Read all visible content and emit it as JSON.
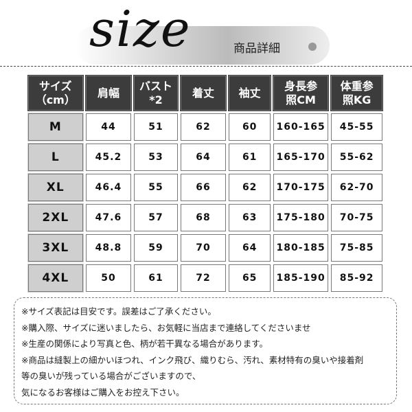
{
  "header": {
    "title": "size",
    "subtitle": "商品詳細"
  },
  "table": {
    "columns": [
      [
        "サイズ",
        "（cm）"
      ],
      [
        "肩幅"
      ],
      [
        "バスト",
        "*2"
      ],
      [
        "着丈"
      ],
      [
        "袖丈"
      ],
      [
        "身長参",
        "照CM"
      ],
      [
        "体重参",
        "照KG"
      ]
    ],
    "rows": [
      [
        "M",
        "44",
        "51",
        "62",
        "60",
        "160-165",
        "45-55"
      ],
      [
        "L",
        "45.2",
        "53",
        "64",
        "61",
        "165-170",
        "55-62"
      ],
      [
        "XL",
        "46.4",
        "55",
        "66",
        "62",
        "170-175",
        "62-70"
      ],
      [
        "2XL",
        "47.6",
        "57",
        "68",
        "63",
        "175-180",
        "70-75"
      ],
      [
        "3XL",
        "48.8",
        "59",
        "70",
        "64",
        "180-185",
        "75-85"
      ],
      [
        "4XL",
        "50",
        "61",
        "72",
        "65",
        "185-190",
        "85-92"
      ]
    ]
  },
  "notes": [
    "※サイズ表記は目安です。誤差はご了承ください。",
    "※購入際、サイズに迷いましたら、お気軽に当店まで連絡してくださいませ",
    "※生産の関係により写真と色、柄が若干異なる場合があります。",
    "※商品は縫製上の細かいほつれ、インク飛び、織りむら、汚れ、素材特有の臭いや接着剤",
    "等の臭いが残っている場合がございますので、",
    "気になるお客様はご購入をお控え下さい。"
  ]
}
